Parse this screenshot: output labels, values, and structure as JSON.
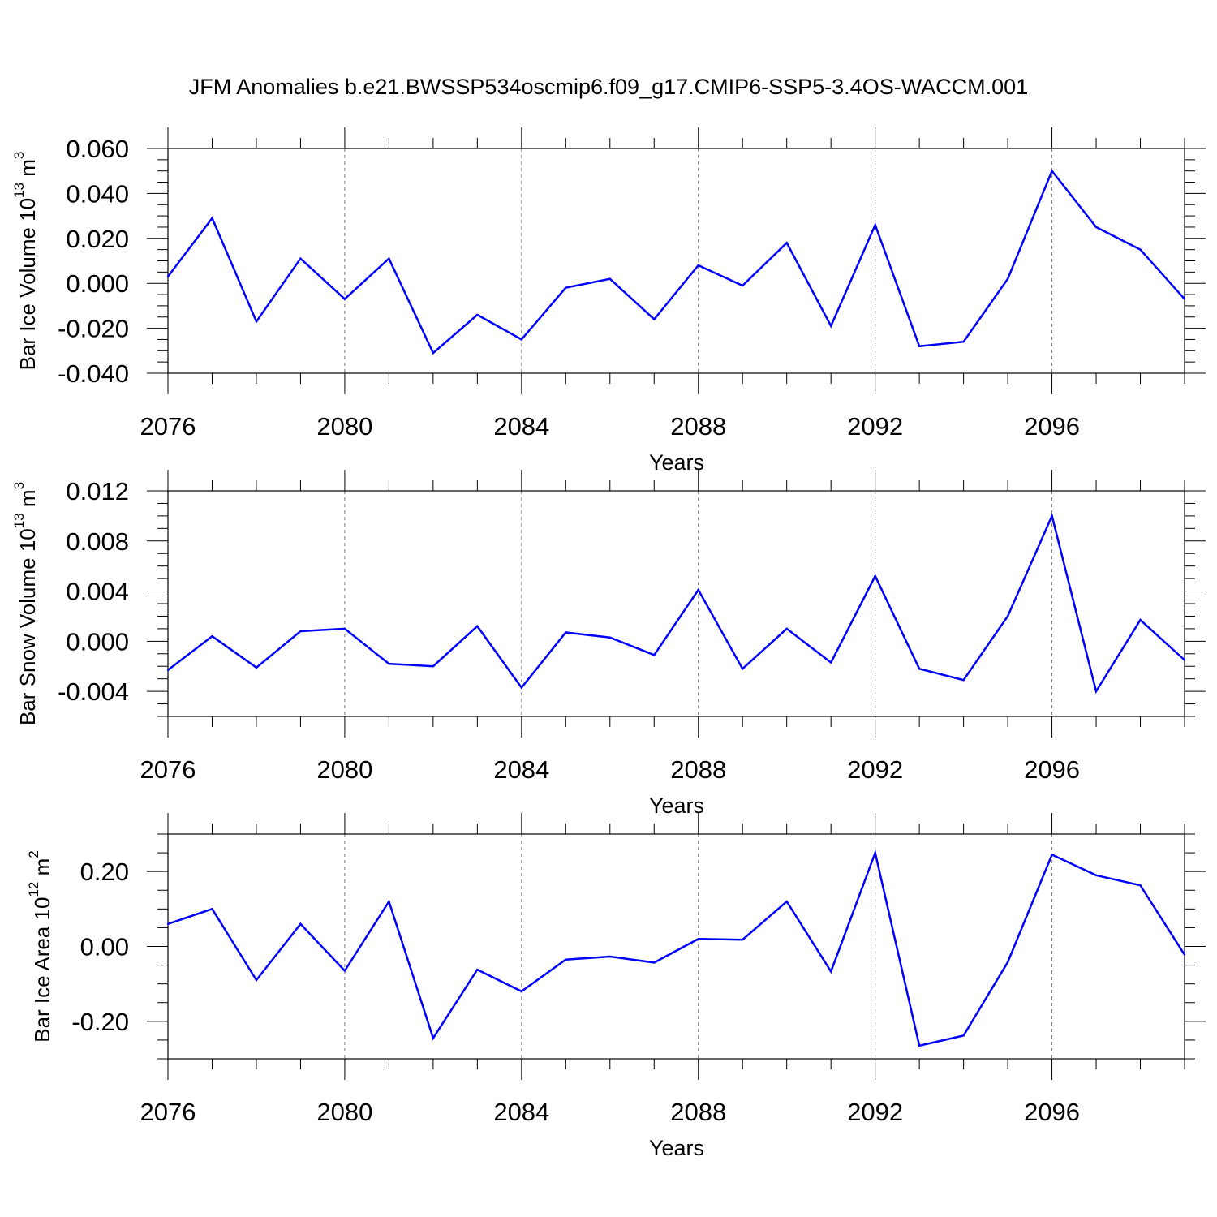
{
  "title": "JFM Anomalies b.e21.BWSSP534oscmip6.f09_g17.CMIP6-SSP5-3.4OS-WACCM.001",
  "chart_data": [
    {
      "type": "line",
      "name": "ice-volume",
      "ylabel_main": "Bar Ice Volume 10",
      "ylabel_exp": "13",
      "ylabel_unit": " m",
      "ylabel_unit_exp": "3",
      "xlabel": "Years",
      "xlim": [
        2076,
        2099
      ],
      "ylim": [
        -0.04,
        0.06
      ],
      "yticks": [
        -0.04,
        -0.02,
        0.0,
        0.02,
        0.04,
        0.06
      ],
      "ytick_labels": [
        "-0.040",
        "-0.020",
        "0.000",
        "0.020",
        "0.040",
        "0.060"
      ],
      "xticks": [
        2076,
        2080,
        2084,
        2088,
        2092,
        2096
      ],
      "xtick_labels": [
        "2076",
        "2080",
        "2084",
        "2088",
        "2092",
        "2096"
      ],
      "line_color": "#0000ff",
      "x": [
        2076,
        2077,
        2078,
        2079,
        2080,
        2081,
        2082,
        2083,
        2084,
        2085,
        2086,
        2087,
        2088,
        2089,
        2090,
        2091,
        2092,
        2093,
        2094,
        2095,
        2096,
        2097,
        2098,
        2099
      ],
      "values": [
        0.003,
        0.029,
        -0.017,
        0.011,
        -0.007,
        0.011,
        -0.031,
        -0.014,
        -0.025,
        -0.002,
        0.002,
        -0.016,
        0.008,
        -0.001,
        0.018,
        -0.019,
        0.026,
        -0.028,
        -0.026,
        0.002,
        0.05,
        0.025,
        0.015,
        -0.007
      ]
    },
    {
      "type": "line",
      "name": "snow-volume",
      "ylabel_main": "Bar Snow Volume 10",
      "ylabel_exp": "13",
      "ylabel_unit": " m",
      "ylabel_unit_exp": "3",
      "xlabel": "Years",
      "xlim": [
        2076,
        2099
      ],
      "ylim": [
        -0.006,
        0.012
      ],
      "yticks": [
        -0.004,
        0.0,
        0.004,
        0.008,
        0.012
      ],
      "ytick_labels": [
        "-0.004",
        "0.000",
        "0.004",
        "0.008",
        "0.012"
      ],
      "xticks": [
        2076,
        2080,
        2084,
        2088,
        2092,
        2096
      ],
      "xtick_labels": [
        "2076",
        "2080",
        "2084",
        "2088",
        "2092",
        "2096"
      ],
      "line_color": "#0000ff",
      "x": [
        2076,
        2077,
        2078,
        2079,
        2080,
        2081,
        2082,
        2083,
        2084,
        2085,
        2086,
        2087,
        2088,
        2089,
        2090,
        2091,
        2092,
        2093,
        2094,
        2095,
        2096,
        2097,
        2098,
        2099
      ],
      "values": [
        -0.0023,
        0.0004,
        -0.0021,
        0.0008,
        0.001,
        -0.0018,
        -0.002,
        0.0012,
        -0.0037,
        0.0007,
        0.0003,
        -0.0011,
        0.0041,
        -0.0022,
        0.001,
        -0.0017,
        0.0052,
        -0.0022,
        -0.0031,
        0.002,
        0.01,
        -0.004,
        0.0017,
        -0.0015
      ]
    },
    {
      "type": "line",
      "name": "ice-area",
      "ylabel_main": "Bar Ice Area 10",
      "ylabel_exp": "12",
      "ylabel_unit": " m",
      "ylabel_unit_exp": "2",
      "xlabel": "Years",
      "xlim": [
        2076,
        2099
      ],
      "ylim": [
        -0.3,
        0.3
      ],
      "yticks": [
        -0.2,
        0.0,
        0.2
      ],
      "ytick_labels": [
        "-0.20",
        "0.00",
        "0.20"
      ],
      "xticks": [
        2076,
        2080,
        2084,
        2088,
        2092,
        2096
      ],
      "xtick_labels": [
        "2076",
        "2080",
        "2084",
        "2088",
        "2092",
        "2096"
      ],
      "line_color": "#0000ff",
      "x": [
        2076,
        2077,
        2078,
        2079,
        2080,
        2081,
        2082,
        2083,
        2084,
        2085,
        2086,
        2087,
        2088,
        2089,
        2090,
        2091,
        2092,
        2093,
        2094,
        2095,
        2096,
        2097,
        2098,
        2099
      ],
      "values": [
        0.06,
        0.1,
        -0.09,
        0.06,
        -0.065,
        0.12,
        -0.245,
        -0.062,
        -0.12,
        -0.035,
        -0.027,
        -0.043,
        0.02,
        0.018,
        0.12,
        -0.067,
        0.25,
        -0.265,
        -0.238,
        -0.042,
        0.245,
        0.19,
        0.163,
        -0.022
      ]
    }
  ]
}
